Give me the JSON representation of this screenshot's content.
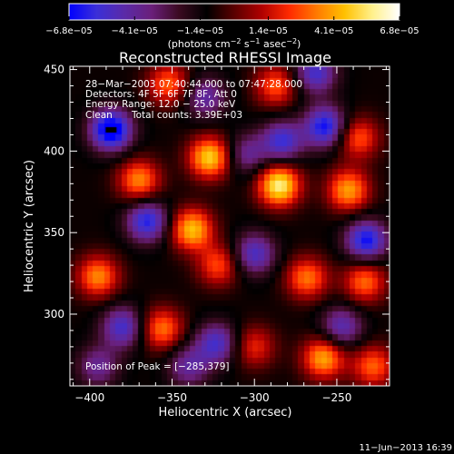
{
  "colorbar": {
    "ticks": [
      "−6.8e−05",
      "−4.1e−05",
      "−1.4e−05",
      "1.4e−05",
      "4.1e−05",
      "6.8e−05"
    ],
    "unit_main": "(photons cm",
    "unit_exp1": "−2",
    "unit_mid": " s",
    "unit_exp2": "−1",
    "unit_tail": " asec",
    "unit_exp3": "−2",
    "unit_close": ")",
    "range": [
      -6.8e-05,
      6.8e-05
    ],
    "colormap": [
      "#0000ff",
      "#3b2fd8",
      "#5a2aa8",
      "#6a1f7a",
      "#3a0a20",
      "#000000",
      "#5a0000",
      "#b00000",
      "#ff2a00",
      "#ff7a00",
      "#ffc000",
      "#fff08a",
      "#ffffff"
    ]
  },
  "chart_data": {
    "type": "heatmap",
    "title": "Reconstructed RHESSI Image",
    "xlabel": "Heliocentric X (arcsec)",
    "ylabel": "Heliocentric Y (arcsec)",
    "xlim": [
      -412,
      -218
    ],
    "ylim": [
      256,
      452
    ],
    "xticks": [
      -400,
      -350,
      -300,
      -250
    ],
    "yticks": [
      300,
      350,
      400,
      450
    ],
    "xtick_labels": [
      "−400",
      "−350",
      "−300",
      "−250"
    ],
    "ytick_labels": [
      "300",
      "350",
      "400",
      "450"
    ],
    "grid": false,
    "peak": [
      -285,
      379
    ],
    "hot_spots": [
      {
        "x": -327,
        "y": 396,
        "v": 6e-05
      },
      {
        "x": -285,
        "y": 379,
        "v": 6.8e-05
      },
      {
        "x": -338,
        "y": 352,
        "v": 5.6e-05
      },
      {
        "x": -370,
        "y": 382,
        "v": 4.6e-05
      },
      {
        "x": -243,
        "y": 376,
        "v": 5e-05
      },
      {
        "x": -237,
        "y": 408,
        "v": 3.8e-05
      },
      {
        "x": -233,
        "y": 320,
        "v": 4.2e-05
      },
      {
        "x": -268,
        "y": 322,
        "v": 4.3e-05
      },
      {
        "x": -395,
        "y": 323,
        "v": 4.6e-05
      },
      {
        "x": -356,
        "y": 291,
        "v": 4.3e-05
      },
      {
        "x": -258,
        "y": 273,
        "v": 5.2e-05
      },
      {
        "x": -228,
        "y": 268,
        "v": 4e-05
      },
      {
        "x": -352,
        "y": 441,
        "v": 4e-05
      },
      {
        "x": -287,
        "y": 440,
        "v": 3.8e-05
      },
      {
        "x": -322,
        "y": 330,
        "v": 3.6e-05
      },
      {
        "x": -300,
        "y": 280,
        "v": 3e-05
      }
    ],
    "cold_spots": [
      {
        "x": -387,
        "y": 413,
        "v": -6.8e-05
      },
      {
        "x": -365,
        "y": 357,
        "v": -5.2e-05
      },
      {
        "x": -257,
        "y": 415,
        "v": -5.6e-05
      },
      {
        "x": -232,
        "y": 345,
        "v": -5.6e-05
      },
      {
        "x": -283,
        "y": 406,
        "v": -4.6e-05
      },
      {
        "x": -300,
        "y": 337,
        "v": -4.2e-05
      },
      {
        "x": -380,
        "y": 292,
        "v": -4.4e-05
      },
      {
        "x": -323,
        "y": 282,
        "v": -4.3e-05
      },
      {
        "x": -247,
        "y": 292,
        "v": -3.8e-05
      },
      {
        "x": -263,
        "y": 448,
        "v": -4.4e-05
      },
      {
        "x": -330,
        "y": 433,
        "v": -3.4e-05
      },
      {
        "x": -305,
        "y": 398,
        "v": -3e-05
      },
      {
        "x": -395,
        "y": 268,
        "v": -3e-05
      },
      {
        "x": -340,
        "y": 268,
        "v": -3.2e-05
      }
    ]
  },
  "annotations": {
    "line1": "28−Mar−2003 07:40:44.000 to 07:47:28.000",
    "line2": "Detectors: 4F 5F 6F 7F 8F, Att 0",
    "line3": "Energy Range: 12.0 − 25.0 keV",
    "line4_a": "Clean",
    "line4_b": "Total counts: 3.39E+03",
    "peak": "Position of Peak = [−285,379]"
  },
  "footer": {
    "date": "11−Jun−2013 16:39"
  }
}
